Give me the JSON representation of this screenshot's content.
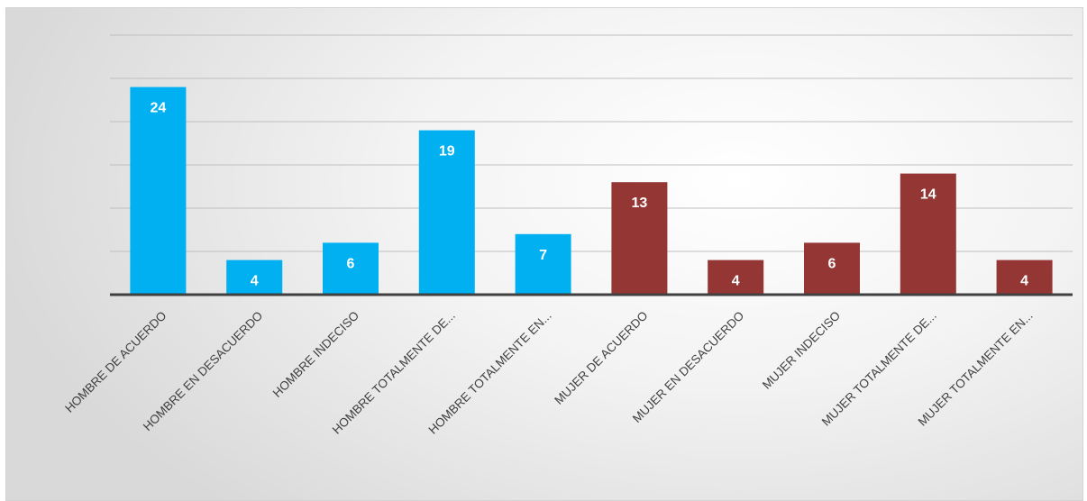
{
  "chart_data": {
    "type": "bar",
    "categories": [
      "HOMBRE DE ACUERDO",
      "HOMBRE EN DESACUERDO",
      "HOMBRE INDECISO",
      "HOMBRE TOTALMENTE DE...",
      "HOMBRE TOTALMENTE EN...",
      "MUJER DE ACUERDO",
      "MUJER EN DESACUERDO",
      "MUJER INDECISO",
      "MUJER TOTALMENTE DE...",
      "MUJER TOTALMENTE EN..."
    ],
    "values": [
      24,
      4,
      6,
      19,
      7,
      13,
      4,
      6,
      14,
      4
    ],
    "value_labels": [
      "24",
      "4",
      "6",
      "19",
      "7",
      "13",
      "4",
      "6",
      "14",
      "4"
    ],
    "bar_colors": [
      "#00b0f0",
      "#00b0f0",
      "#00b0f0",
      "#00b0f0",
      "#00b0f0",
      "#943634",
      "#943634",
      "#943634",
      "#943634",
      "#943634"
    ],
    "ylim": [
      0,
      30
    ],
    "gridlines": true,
    "legend": "none",
    "axis_color": "#404040",
    "grid_color": "#bfbfbf",
    "label_color": "#ffffff",
    "tick_label_color": "#404040"
  }
}
